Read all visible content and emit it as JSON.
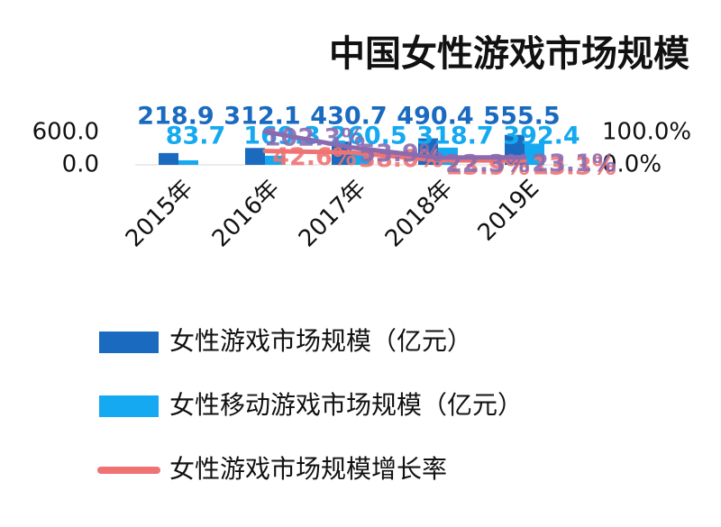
{
  "chart_data": {
    "type": "bar",
    "title": "中国女性游戏市场规模",
    "categories": [
      "2015年",
      "2016年",
      "2017年",
      "2018年",
      "2019E"
    ],
    "series": [
      {
        "name": "女性游戏市场规模（亿元）",
        "type": "bar",
        "color": "#1a6bbf",
        "values": [
          218.9,
          312.1,
          430.7,
          490.4,
          555.5
        ]
      },
      {
        "name": "女性移动游戏市场规模（亿元）",
        "type": "bar",
        "color": "#14a9f0",
        "values": [
          83.7,
          169.3,
          260.5,
          318.7,
          392.4
        ]
      },
      {
        "name": "女性游戏市场规模增长率",
        "type": "line",
        "axis": "y2",
        "color": "#f07272",
        "values": [
          null,
          42.6,
          38.0,
          13.9,
          13.3
        ],
        "value_labels": [
          null,
          "42.6%",
          "38.0%",
          "13.9%",
          "13.3%"
        ]
      },
      {
        "type": "line",
        "axis": "y2",
        "color": "#8a6bb0",
        "values": [
          null,
          102.3,
          53.9,
          22.3,
          23.1
        ],
        "value_labels": [
          null,
          "102.3%",
          "53.9%",
          "22.3%",
          "23.1%"
        ]
      }
    ],
    "ylim": [
      0,
      600
    ],
    "yticks": [
      {
        "value": 0,
        "label": "0.0"
      },
      {
        "value": 600,
        "label": "600.0"
      }
    ],
    "y2lim": [
      0,
      100
    ],
    "y2ticks": [
      {
        "value": 0,
        "label": "0.0%"
      },
      {
        "value": 100,
        "label": "100.0%"
      }
    ],
    "legend": "bottom"
  }
}
